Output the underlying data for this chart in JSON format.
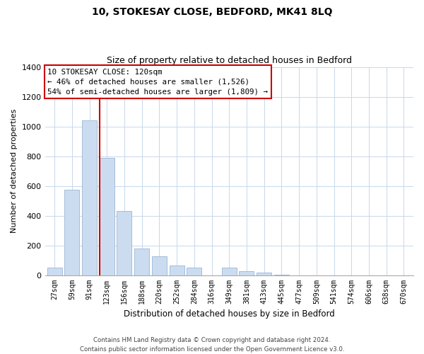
{
  "title1": "10, STOKESAY CLOSE, BEDFORD, MK41 8LQ",
  "title2": "Size of property relative to detached houses in Bedford",
  "xlabel": "Distribution of detached houses by size in Bedford",
  "ylabel": "Number of detached properties",
  "bar_color": "#ccdcf0",
  "bar_edge_color": "#9ab5d5",
  "categories": [
    "27sqm",
    "59sqm",
    "91sqm",
    "123sqm",
    "156sqm",
    "188sqm",
    "220sqm",
    "252sqm",
    "284sqm",
    "316sqm",
    "349sqm",
    "381sqm",
    "413sqm",
    "445sqm",
    "477sqm",
    "509sqm",
    "541sqm",
    "574sqm",
    "606sqm",
    "638sqm",
    "670sqm"
  ],
  "values": [
    50,
    575,
    1040,
    790,
    430,
    180,
    125,
    65,
    50,
    0,
    48,
    25,
    15,
    5,
    0,
    0,
    0,
    0,
    0,
    0,
    0
  ],
  "ylim": [
    0,
    1400
  ],
  "yticks": [
    0,
    200,
    400,
    600,
    800,
    1000,
    1200,
    1400
  ],
  "property_line_idx": 3,
  "property_line_color": "#cc0000",
  "ann_line1": "10 STOKESAY CLOSE: 120sqm",
  "ann_line2": "← 46% of detached houses are smaller (1,526)",
  "ann_line3": "54% of semi-detached houses are larger (1,809) →",
  "annotation_box_color": "#ffffff",
  "annotation_box_edge": "#cc0000",
  "footer1": "Contains HM Land Registry data © Crown copyright and database right 2024.",
  "footer2": "Contains public sector information licensed under the Open Government Licence v3.0.",
  "figsize": [
    6.0,
    5.0
  ],
  "dpi": 100
}
